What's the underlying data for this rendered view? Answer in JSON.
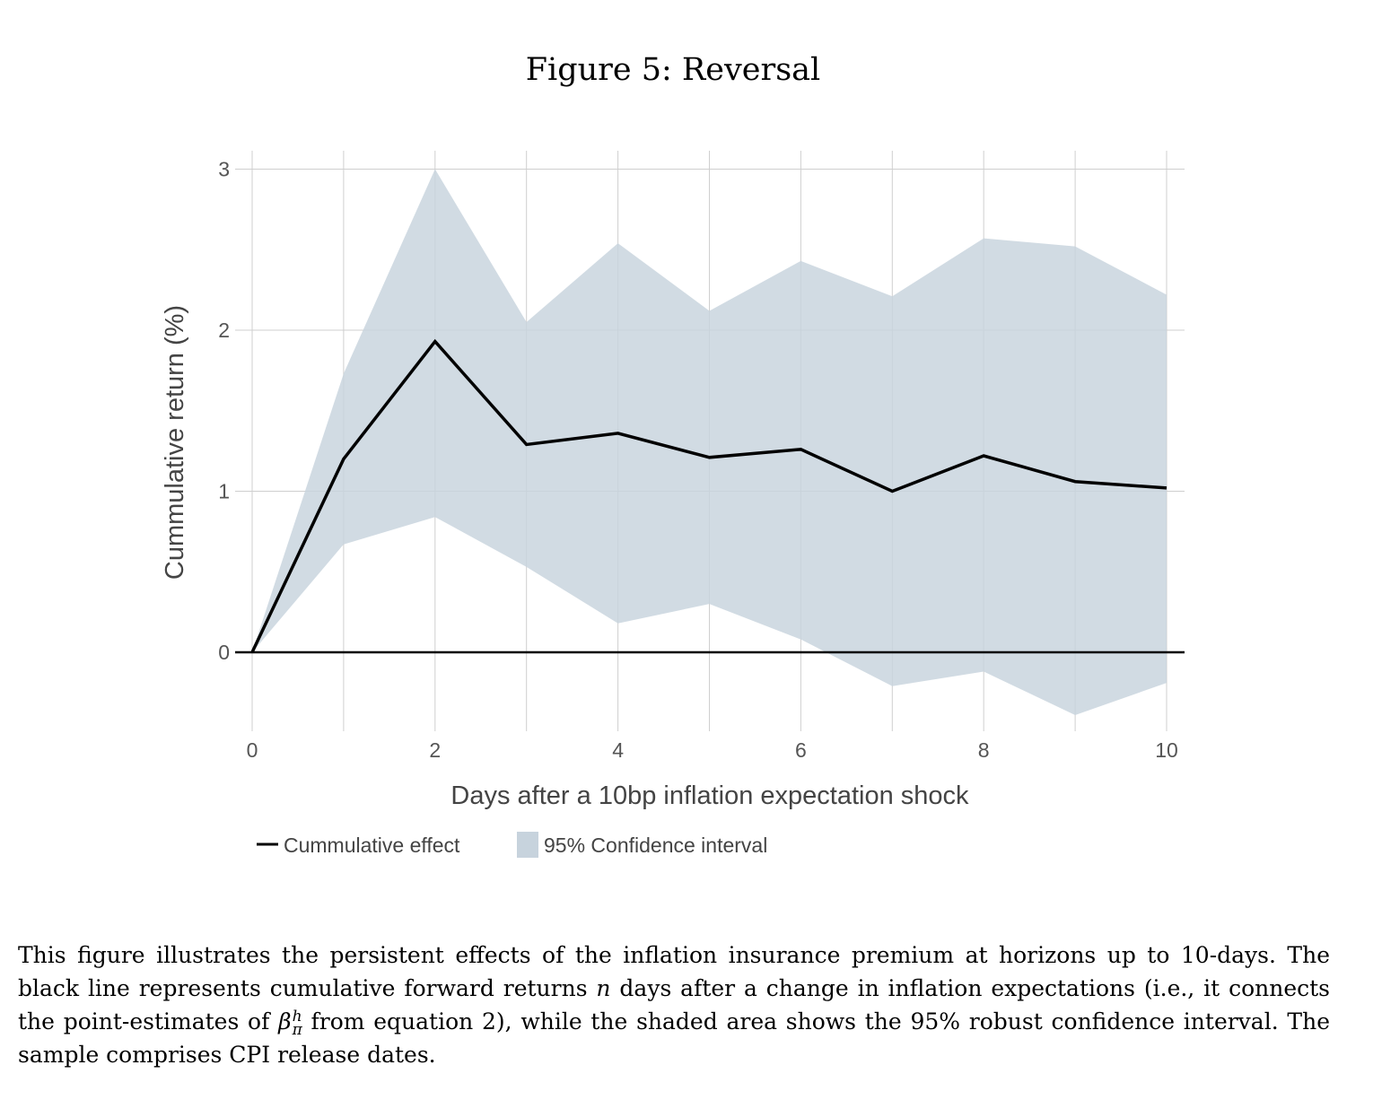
{
  "title": "Figure 5: Reversal",
  "chart_data": {
    "type": "line",
    "xlabel": "Days after a 10bp inflation expectation shock",
    "ylabel": "Cummulative return (%)",
    "xlim": [
      0,
      10
    ],
    "ylim": [
      -0.6,
      3.1
    ],
    "xticks": [
      0,
      2,
      4,
      6,
      8,
      10
    ],
    "yticks": [
      0,
      1,
      2,
      3
    ],
    "grid": true,
    "legend_position": "bottom-left",
    "x": [
      0,
      1,
      2,
      3,
      4,
      5,
      6,
      7,
      8,
      9,
      10
    ],
    "series": [
      {
        "name": "Cummulative effect",
        "type": "line",
        "color": "#000000",
        "values": [
          0,
          1.2,
          1.93,
          1.29,
          1.36,
          1.21,
          1.26,
          1.0,
          1.22,
          1.06,
          1.02
        ]
      },
      {
        "name": "95% Confidence interval",
        "type": "band",
        "color": "#c7d3dd",
        "lower": [
          0,
          0.67,
          0.84,
          0.53,
          0.18,
          0.3,
          0.08,
          -0.21,
          -0.12,
          -0.39,
          -0.19
        ],
        "upper": [
          0,
          1.73,
          3.0,
          2.05,
          2.54,
          2.12,
          2.43,
          2.21,
          2.57,
          2.52,
          2.22
        ]
      }
    ],
    "zero_line": true
  },
  "caption": {
    "p1": "This figure illustrates the persistent effects of the inflation insurance premium at horizons up to 10-days. The black line represents cumulative forward returns ",
    "n": "n",
    "p2": " days after a change in inflation expectations (i.e., it connects the point-estimates of ",
    "beta": "β",
    "sup": "h",
    "sub": "π",
    "p3": " from equation 2), while the shaded area shows the 95% robust confidence interval. The sample comprises CPI release dates."
  }
}
